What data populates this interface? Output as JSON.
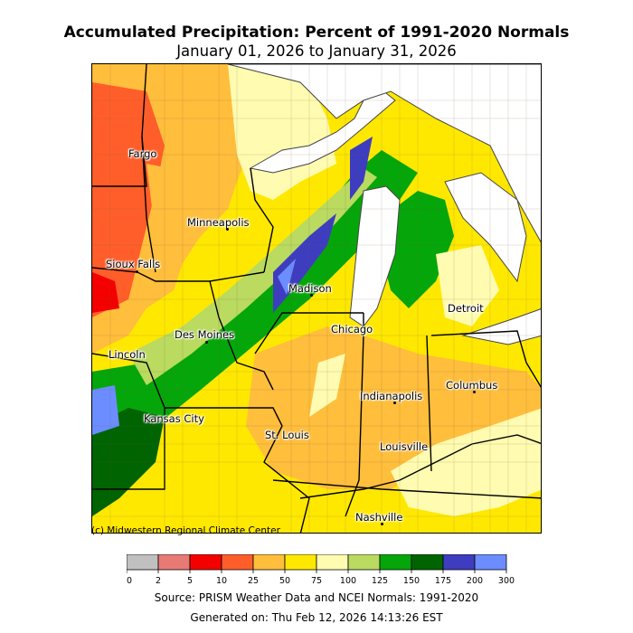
{
  "title": "Accumulated Precipitation: Percent of 1991-2020 Normals",
  "subtitle": "January 01, 2026 to January 31, 2026",
  "credit": "(c) Midwestern Regional Climate Center",
  "source": "Source: PRISM Weather Data and NCEI Normals: 1991-2020",
  "generated": "Generated on: Thu Feb 12, 2026 14:13:26 EST",
  "legend": {
    "ticks": [
      "0",
      "2",
      "5",
      "10",
      "25",
      "50",
      "75",
      "100",
      "125",
      "150",
      "175",
      "200",
      "300"
    ],
    "colors": [
      "#c0c0c0",
      "#e87a75",
      "#f50000",
      "#ff5e2a",
      "#ffbe3c",
      "#ffe800",
      "#fffbb0",
      "#bada60",
      "#05a60a",
      "#006400",
      "#3e3dbf",
      "#6b8dff"
    ]
  },
  "cities": [
    {
      "name": "Fargo"
    },
    {
      "name": "Minneapolis"
    },
    {
      "name": "Sioux Falls"
    },
    {
      "name": "Madison"
    },
    {
      "name": "Detroit"
    },
    {
      "name": "Chicago"
    },
    {
      "name": "Des Moines"
    },
    {
      "name": "Lincoln"
    },
    {
      "name": "Columbus"
    },
    {
      "name": "Indianapolis"
    },
    {
      "name": "Kansas City"
    },
    {
      "name": "St. Louis"
    },
    {
      "name": "Louisville"
    },
    {
      "name": "Nashville"
    }
  ]
}
